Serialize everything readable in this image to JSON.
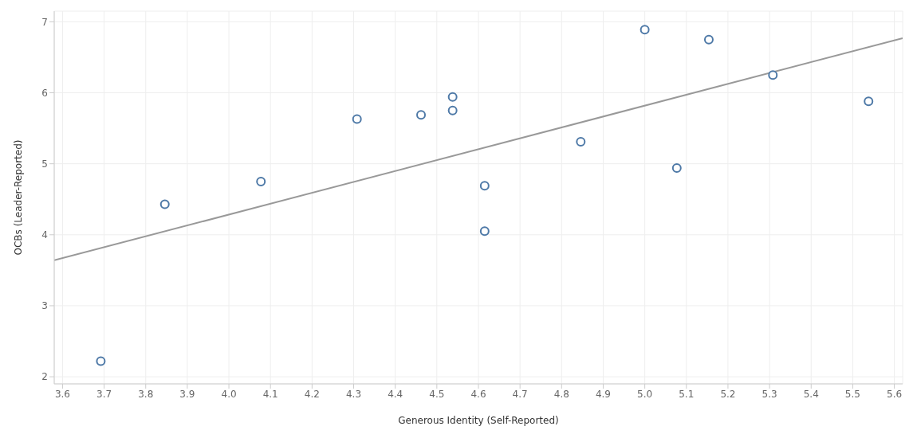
{
  "chart_data": {
    "type": "scatter",
    "xlabel": "Generous Identity (Self-Reported)",
    "ylabel": "OCBs (Leader-Reported)",
    "xlim": [
      3.58,
      5.62
    ],
    "ylim": [
      1.9,
      7.15
    ],
    "xticks": [
      3.6,
      3.7,
      3.8,
      3.9,
      {
        "value": 4,
        "label": "4.0"
      },
      4.1,
      4.2,
      4.3,
      4.4,
      4.5,
      4.6,
      4.7,
      4.8,
      4.9,
      {
        "value": 5,
        "label": "5.0"
      },
      5.1,
      5.2,
      5.3,
      5.4,
      5.5,
      5.6
    ],
    "yticks": [
      2,
      3,
      4,
      5,
      6,
      7
    ],
    "grid": true,
    "legend": false,
    "series": [
      {
        "marker": "circle",
        "color": "#4e79a7",
        "x": [
          3.692,
          3.846,
          4.077,
          4.308,
          4.462,
          4.538,
          4.538,
          4.615,
          4.615,
          4.846,
          5.0,
          5.077,
          5.154,
          5.308,
          5.538
        ],
        "values": [
          2.22,
          4.43,
          4.75,
          5.63,
          5.69,
          5.94,
          5.75,
          4.69,
          4.05,
          5.31,
          6.89,
          4.94,
          6.75,
          6.25,
          5.88
        ]
      },
      {
        "type": "line",
        "color": "#999999",
        "x": [
          3.58,
          5.62
        ],
        "values": [
          3.64,
          6.77
        ]
      }
    ]
  }
}
